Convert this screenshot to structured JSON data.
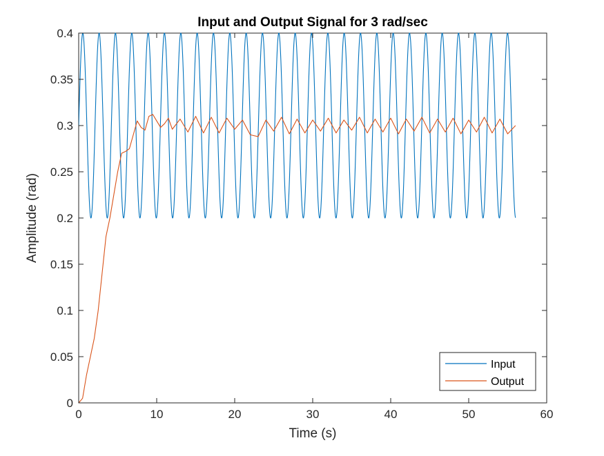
{
  "chart_data": {
    "type": "line",
    "title": "Input and Output Signal for 3 rad/sec",
    "xlabel": "Time (s)",
    "ylabel": "Amplitude (rad)",
    "xlim": [
      0,
      60
    ],
    "ylim": [
      0,
      0.4
    ],
    "x_ticks": [
      "0",
      "10",
      "20",
      "30",
      "40",
      "50",
      "60"
    ],
    "y_ticks": [
      "0",
      "0.05",
      "0.1",
      "0.15",
      "0.2",
      "0.25",
      "0.3",
      "0.35",
      "0.4"
    ],
    "grid": false,
    "legend_position": "bottom-right",
    "series": [
      {
        "name": "Input",
        "color": "#0072BD",
        "description_of_form": "0.3 + 0.1*sin(3t)",
        "offset": 0.3,
        "amplitude": 0.1,
        "frequency_rad_per_s": 3,
        "t_start": 0,
        "t_end": 56
      },
      {
        "name": "Output",
        "color": "#D95319",
        "x": [
          0,
          0.5,
          1.0,
          1.5,
          2.0,
          2.5,
          3.0,
          3.5,
          4.0,
          4.5,
          5.0,
          5.5,
          6.0,
          6.5,
          7.0,
          7.5,
          8.0,
          8.5,
          9.0,
          9.5,
          10.0,
          10.5,
          11.0,
          11.5,
          12.0,
          13.0,
          14.0,
          15.0,
          16.0,
          17.0,
          18.0,
          19.0,
          20.0,
          21.0,
          22.0,
          23.0,
          24.0,
          25.0,
          26.0,
          27.0,
          28.0,
          29.0,
          30.0,
          31.0,
          32.0,
          33.0,
          34.0,
          35.0,
          36.0,
          37.0,
          38.0,
          39.0,
          40.0,
          41.0,
          42.0,
          43.0,
          44.0,
          45.0,
          46.0,
          47.0,
          48.0,
          49.0,
          50.0,
          51.0,
          52.0,
          53.0,
          54.0,
          55.0,
          56.0
        ],
        "y": [
          0,
          0.005,
          0.03,
          0.05,
          0.07,
          0.1,
          0.14,
          0.18,
          0.2,
          0.225,
          0.25,
          0.27,
          0.272,
          0.275,
          0.29,
          0.305,
          0.298,
          0.295,
          0.31,
          0.312,
          0.305,
          0.298,
          0.302,
          0.308,
          0.296,
          0.307,
          0.293,
          0.31,
          0.292,
          0.309,
          0.292,
          0.308,
          0.296,
          0.306,
          0.29,
          0.288,
          0.306,
          0.294,
          0.309,
          0.291,
          0.307,
          0.292,
          0.306,
          0.294,
          0.308,
          0.292,
          0.306,
          0.295,
          0.309,
          0.292,
          0.307,
          0.293,
          0.308,
          0.291,
          0.307,
          0.294,
          0.309,
          0.292,
          0.307,
          0.293,
          0.308,
          0.291,
          0.306,
          0.293,
          0.309,
          0.292,
          0.307,
          0.291,
          0.3
        ]
      }
    ]
  }
}
